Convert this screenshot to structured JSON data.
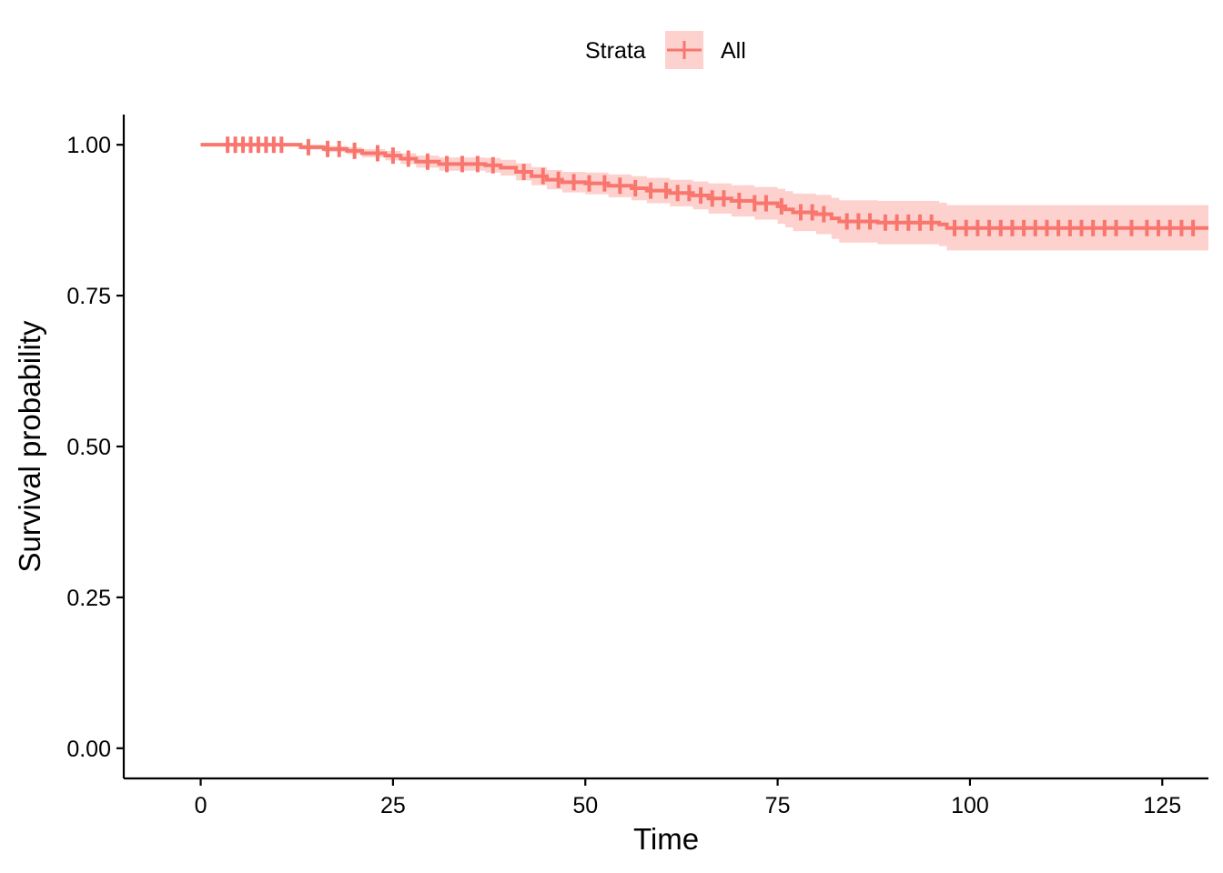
{
  "chart_data": {
    "type": "line",
    "subtype": "kaplan-meier",
    "xlabel": "Time",
    "ylabel": "Survival probability",
    "xlim": [
      -10,
      131
    ],
    "ylim": [
      -0.05,
      1.05
    ],
    "x_ticks": [
      0,
      25,
      50,
      75,
      100,
      125
    ],
    "x_tick_labels": [
      "0",
      "25",
      "50",
      "75",
      "100",
      "125"
    ],
    "y_ticks": [
      0.0,
      0.25,
      0.5,
      0.75,
      1.0
    ],
    "y_tick_labels": [
      "0.00",
      "0.25",
      "0.50",
      "0.75",
      "1.00"
    ],
    "grid": false,
    "legend": {
      "position": "top",
      "title": "Strata",
      "entries": [
        "All"
      ]
    },
    "colors": {
      "line": "#F8766D",
      "band": "#FDD1CE",
      "axis": "#000000"
    },
    "series": [
      {
        "name": "All",
        "points": [
          [
            0,
            1.0
          ],
          [
            11,
            1.0
          ],
          [
            13,
            0.996
          ],
          [
            16,
            0.993
          ],
          [
            19,
            0.99
          ],
          [
            21,
            0.986
          ],
          [
            24,
            0.982
          ],
          [
            26,
            0.977
          ],
          [
            28,
            0.972
          ],
          [
            31,
            0.968
          ],
          [
            37,
            0.966
          ],
          [
            39,
            0.962
          ],
          [
            41,
            0.955
          ],
          [
            43,
            0.948
          ],
          [
            45,
            0.942
          ],
          [
            47,
            0.938
          ],
          [
            50,
            0.936
          ],
          [
            53,
            0.932
          ],
          [
            56,
            0.928
          ],
          [
            58,
            0.924
          ],
          [
            61,
            0.92
          ],
          [
            64,
            0.916
          ],
          [
            66,
            0.911
          ],
          [
            69,
            0.907
          ],
          [
            72,
            0.903
          ],
          [
            75,
            0.898
          ],
          [
            76,
            0.893
          ],
          [
            77,
            0.888
          ],
          [
            80,
            0.885
          ],
          [
            82,
            0.878
          ],
          [
            83,
            0.873
          ],
          [
            88,
            0.871
          ],
          [
            96,
            0.868
          ],
          [
            97,
            0.862
          ],
          [
            131,
            0.862
          ]
        ],
        "ci_lower": [
          [
            0,
            1.0
          ],
          [
            11,
            0.998
          ],
          [
            13,
            0.992
          ],
          [
            16,
            0.988
          ],
          [
            19,
            0.984
          ],
          [
            21,
            0.979
          ],
          [
            24,
            0.974
          ],
          [
            26,
            0.968
          ],
          [
            28,
            0.962
          ],
          [
            31,
            0.957
          ],
          [
            37,
            0.954
          ],
          [
            39,
            0.949
          ],
          [
            41,
            0.941
          ],
          [
            43,
            0.933
          ],
          [
            45,
            0.926
          ],
          [
            47,
            0.921
          ],
          [
            50,
            0.918
          ],
          [
            53,
            0.913
          ],
          [
            56,
            0.908
          ],
          [
            58,
            0.903
          ],
          [
            61,
            0.898
          ],
          [
            64,
            0.893
          ],
          [
            66,
            0.886
          ],
          [
            69,
            0.881
          ],
          [
            72,
            0.876
          ],
          [
            75,
            0.869
          ],
          [
            76,
            0.863
          ],
          [
            77,
            0.857
          ],
          [
            80,
            0.852
          ],
          [
            82,
            0.844
          ],
          [
            83,
            0.838
          ],
          [
            88,
            0.835
          ],
          [
            96,
            0.832
          ],
          [
            97,
            0.825
          ],
          [
            131,
            0.825
          ]
        ],
        "ci_upper": [
          [
            0,
            1.0
          ],
          [
            11,
            1.0
          ],
          [
            13,
            1.0
          ],
          [
            16,
            0.998
          ],
          [
            19,
            0.996
          ],
          [
            21,
            0.993
          ],
          [
            24,
            0.99
          ],
          [
            26,
            0.986
          ],
          [
            28,
            0.982
          ],
          [
            31,
            0.979
          ],
          [
            37,
            0.978
          ],
          [
            39,
            0.975
          ],
          [
            41,
            0.969
          ],
          [
            43,
            0.963
          ],
          [
            45,
            0.958
          ],
          [
            47,
            0.955
          ],
          [
            50,
            0.954
          ],
          [
            53,
            0.951
          ],
          [
            56,
            0.948
          ],
          [
            58,
            0.945
          ],
          [
            61,
            0.942
          ],
          [
            64,
            0.939
          ],
          [
            66,
            0.936
          ],
          [
            69,
            0.933
          ],
          [
            72,
            0.93
          ],
          [
            75,
            0.927
          ],
          [
            76,
            0.923
          ],
          [
            77,
            0.919
          ],
          [
            80,
            0.917
          ],
          [
            82,
            0.912
          ],
          [
            83,
            0.908
          ],
          [
            88,
            0.907
          ],
          [
            96,
            0.904
          ],
          [
            97,
            0.9
          ],
          [
            131,
            0.9
          ]
        ],
        "censor_times": [
          3.5,
          4.5,
          5.5,
          6.5,
          7.5,
          8.5,
          9.5,
          10.5,
          14,
          16.5,
          18,
          20,
          23,
          25,
          27,
          29.5,
          32,
          34,
          36,
          38,
          42,
          44.5,
          46.5,
          48.5,
          50.5,
          52.5,
          54.5,
          56.5,
          58.5,
          60.5,
          62,
          63.5,
          65,
          66.5,
          68,
          70,
          72,
          73.5,
          75.5,
          78,
          79.5,
          81,
          84,
          85.5,
          87,
          89,
          90.5,
          92,
          93.5,
          95,
          98,
          99.5,
          101,
          102.5,
          104,
          105.5,
          107,
          108.5,
          110,
          111.5,
          113,
          114.5,
          116,
          117.5,
          119,
          121,
          123,
          124.5,
          126,
          127.5,
          129
        ]
      }
    ]
  }
}
